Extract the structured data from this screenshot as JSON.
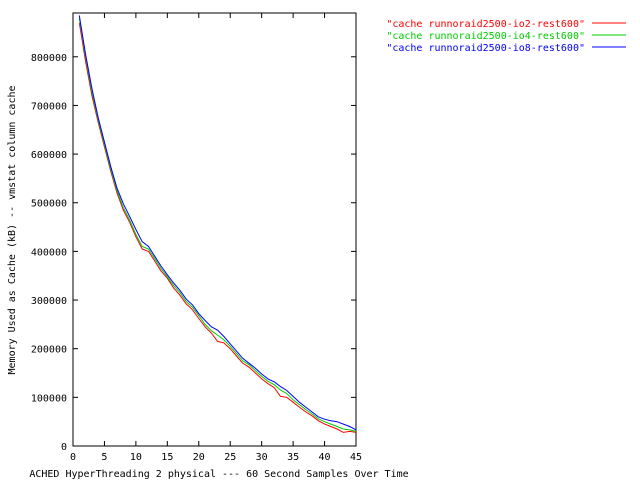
{
  "chart_data": {
    "type": "line",
    "title": "",
    "xlabel": "ACHED HyperThreading 2 physical --- 60 Second Samples Over Time",
    "ylabel": "Memory Used as Cache (kB) -- vmstat column cache",
    "xlim": [
      0,
      45
    ],
    "ylim": [
      0,
      890000
    ],
    "x_ticks": [
      0,
      5,
      10,
      15,
      20,
      25,
      30,
      35,
      40,
      45
    ],
    "x_tick_labels": [
      "0",
      "5",
      "10",
      "15",
      "20",
      "25",
      "30",
      "35",
      "40",
      "45"
    ],
    "y_ticks": [
      0,
      100000,
      200000,
      300000,
      400000,
      500000,
      600000,
      700000,
      800000
    ],
    "y_tick_labels": [
      "0",
      "100000",
      "200000",
      "300000",
      "400000",
      "500000",
      "600000",
      "700000",
      "800000"
    ],
    "grid": false,
    "legend_position": "top-right",
    "x": [
      1,
      2,
      3,
      4,
      5,
      6,
      7,
      8,
      9,
      10,
      11,
      12,
      13,
      14,
      15,
      16,
      17,
      18,
      19,
      20,
      21,
      22,
      23,
      24,
      25,
      26,
      27,
      28,
      29,
      30,
      31,
      32,
      33,
      34,
      35,
      36,
      37,
      38,
      39,
      40,
      41,
      42,
      43,
      44,
      45
    ],
    "series": [
      {
        "name": "\"cache runnoraid2500-io2-rest600\"",
        "color": "#ff0000",
        "values": [
          870000,
          790000,
          720000,
          665000,
          615000,
          565000,
          520000,
          485000,
          460000,
          430000,
          405000,
          400000,
          380000,
          360000,
          345000,
          325000,
          310000,
          292000,
          280000,
          262000,
          245000,
          232000,
          215000,
          212000,
          200000,
          185000,
          170000,
          162000,
          150000,
          138000,
          128000,
          120000,
          102000,
          100000,
          90000,
          80000,
          70000,
          62000,
          52000,
          45000,
          40000,
          35000,
          28000,
          30000,
          28000
        ]
      },
      {
        "name": "\"cache runnoraid2500-io4-rest600\"",
        "color": "#00cc00",
        "values": [
          880000,
          800000,
          728000,
          670000,
          620000,
          570000,
          525000,
          490000,
          465000,
          435000,
          410000,
          405000,
          385000,
          365000,
          348000,
          330000,
          315000,
          297000,
          285000,
          268000,
          250000,
          237000,
          228000,
          218000,
          205000,
          190000,
          175000,
          167000,
          155000,
          143000,
          133000,
          126000,
          115000,
          108000,
          95000,
          85000,
          75000,
          66000,
          56000,
          50000,
          45000,
          40000,
          35000,
          33000,
          30000
        ]
      },
      {
        "name": "\"cache runnoraid2500-io8-rest600\"",
        "color": "#0000ff",
        "values": [
          885000,
          805000,
          735000,
          675000,
          625000,
          575000,
          530000,
          498000,
          472000,
          445000,
          420000,
          410000,
          390000,
          370000,
          352000,
          335000,
          320000,
          302000,
          290000,
          272000,
          258000,
          245000,
          238000,
          225000,
          210000,
          195000,
          180000,
          170000,
          160000,
          148000,
          138000,
          132000,
          122000,
          114000,
          102000,
          90000,
          80000,
          70000,
          60000,
          55000,
          52000,
          50000,
          45000,
          40000,
          33000
        ]
      }
    ]
  }
}
